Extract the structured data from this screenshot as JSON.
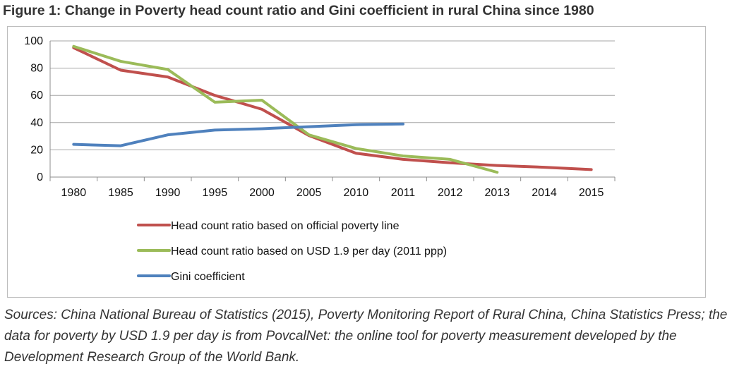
{
  "figure": {
    "title": "Figure 1: Change in Poverty head count ratio and Gini coefficient in rural China since 1980",
    "sources": "Sources: China National Bureau of Statistics (2015), Poverty Monitoring Report of Rural China, China Statistics Press; the data for poverty by USD 1.9 per day is from PovcalNet: the online tool for poverty measurement developed by the Development Research Group of the World Bank."
  },
  "chart_data": {
    "type": "line",
    "title": "",
    "xlabel": "",
    "ylabel": "",
    "categories": [
      "1980",
      "1985",
      "1990",
      "1995",
      "2000",
      "2005",
      "2010",
      "2011",
      "2012",
      "2013",
      "2014",
      "2015"
    ],
    "ylim": [
      0,
      100
    ],
    "yticks": [
      0,
      20,
      40,
      60,
      80,
      100
    ],
    "grid": true,
    "legend_position": "bottom",
    "series": [
      {
        "name": "Head count ratio based on official poverty line",
        "color": "#c0504d",
        "values": [
          95,
          78.5,
          73.5,
          60,
          49.8,
          30.5,
          17.5,
          13,
          10.5,
          8.5,
          7.2,
          5.5
        ]
      },
      {
        "name": "Head count ratio based on USD 1.9 per day (2011 ppp)",
        "color": "#9bbb59",
        "values": [
          96,
          85,
          79,
          55,
          56.5,
          31,
          21,
          15.5,
          13,
          3.5,
          null,
          null
        ]
      },
      {
        "name": "Gini coefficient",
        "color": "#4f81bd",
        "values": [
          24,
          23,
          31,
          34.5,
          35.5,
          37,
          38.5,
          39,
          null,
          null,
          null,
          null
        ]
      }
    ]
  }
}
